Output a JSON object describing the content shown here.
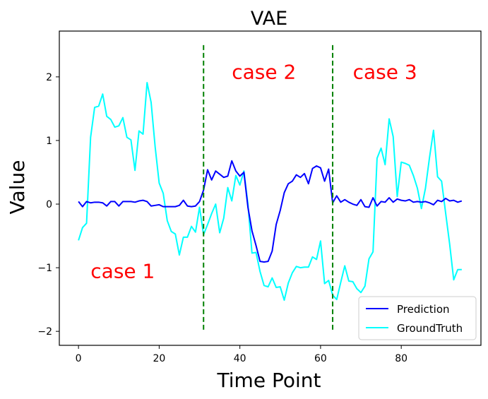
{
  "chart_data": {
    "type": "line",
    "title": "VAE",
    "xlabel": "Time Point",
    "ylabel": "Value",
    "xlim": [
      -4.75,
      99.75
    ],
    "ylim": [
      -2.22,
      2.72
    ],
    "xticks": [
      0,
      20,
      40,
      60,
      80
    ],
    "yticks": [
      -2,
      -1,
      0,
      1,
      2
    ],
    "xtick_labels": [
      "0",
      "20",
      "40",
      "60",
      "80"
    ],
    "ytick_labels": [
      "−2",
      "−1",
      "0",
      "1",
      "2"
    ],
    "grid": false,
    "legend_position": "lower-right",
    "series": [
      {
        "name": "Prediction",
        "color": "#0000ff",
        "x": [
          0,
          1,
          2,
          3,
          4,
          5,
          6,
          7,
          8,
          9,
          10,
          11,
          12,
          13,
          14,
          15,
          16,
          17,
          18,
          19,
          20,
          21,
          22,
          23,
          24,
          25,
          26,
          27,
          28,
          29,
          30,
          31,
          32,
          33,
          34,
          35,
          36,
          37,
          38,
          39,
          40,
          41,
          42,
          43,
          44,
          45,
          46,
          47,
          48,
          49,
          50,
          51,
          52,
          53,
          54,
          55,
          56,
          57,
          58,
          59,
          60,
          61,
          62,
          63,
          64,
          65,
          66,
          67,
          68,
          69,
          70,
          71,
          72,
          73,
          74,
          75,
          76,
          77,
          78,
          79,
          80,
          81,
          82,
          83,
          84,
          85,
          86,
          87,
          88,
          89,
          90,
          91,
          92,
          93,
          94,
          95
        ],
        "y": [
          0.04,
          -0.04,
          0.04,
          0.02,
          0.03,
          0.03,
          0.02,
          -0.03,
          0.04,
          0.04,
          -0.03,
          0.04,
          0.04,
          0.04,
          0.03,
          0.05,
          0.06,
          0.04,
          -0.03,
          -0.02,
          -0.01,
          -0.04,
          -0.04,
          -0.04,
          -0.04,
          -0.02,
          0.06,
          -0.03,
          -0.04,
          -0.03,
          0.04,
          0.22,
          0.54,
          0.38,
          0.52,
          0.47,
          0.42,
          0.44,
          0.68,
          0.52,
          0.44,
          0.5,
          -0.05,
          -0.42,
          -0.65,
          -0.9,
          -0.91,
          -0.9,
          -0.74,
          -0.32,
          -0.1,
          0.18,
          0.32,
          0.36,
          0.46,
          0.42,
          0.48,
          0.32,
          0.56,
          0.6,
          0.57,
          0.36,
          0.55,
          0.02,
          0.13,
          0.03,
          0.07,
          0.03,
          0.0,
          -0.02,
          0.07,
          -0.04,
          -0.05,
          0.1,
          -0.03,
          0.04,
          0.03,
          0.1,
          0.03,
          0.08,
          0.06,
          0.05,
          0.07,
          0.03,
          0.04,
          0.03,
          0.04,
          0.02,
          -0.01,
          0.06,
          0.04,
          0.09,
          0.05,
          0.06,
          0.03,
          0.05
        ]
      },
      {
        "name": "GroundTruth",
        "color": "#00ffff",
        "x": [
          0,
          1,
          2,
          3,
          4,
          5,
          6,
          7,
          8,
          9,
          10,
          11,
          12,
          13,
          14,
          15,
          16,
          17,
          18,
          19,
          20,
          21,
          22,
          23,
          24,
          25,
          26,
          27,
          28,
          29,
          30,
          31,
          32,
          33,
          34,
          35,
          36,
          37,
          38,
          39,
          40,
          41,
          42,
          43,
          44,
          45,
          46,
          47,
          48,
          49,
          50,
          51,
          52,
          53,
          54,
          55,
          56,
          57,
          58,
          59,
          60,
          61,
          62,
          63,
          64,
          65,
          66,
          67,
          68,
          69,
          70,
          71,
          72,
          73,
          74,
          75,
          76,
          77,
          78,
          79,
          80,
          81,
          82,
          83,
          84,
          85,
          86,
          87,
          88,
          89,
          90,
          91,
          92,
          93,
          94,
          95
        ],
        "y": [
          -0.57,
          -0.37,
          -0.3,
          1.05,
          1.52,
          1.54,
          1.73,
          1.38,
          1.33,
          1.21,
          1.23,
          1.36,
          1.05,
          1.01,
          0.53,
          1.15,
          1.1,
          1.91,
          1.6,
          0.9,
          0.33,
          0.17,
          -0.26,
          -0.43,
          -0.47,
          -0.8,
          -0.52,
          -0.52,
          -0.35,
          -0.44,
          -0.05,
          -0.48,
          -0.32,
          -0.15,
          0.0,
          -0.45,
          -0.22,
          0.26,
          0.05,
          0.45,
          0.3,
          0.52,
          0.0,
          -0.77,
          -0.76,
          -1.06,
          -1.28,
          -1.3,
          -1.16,
          -1.31,
          -1.3,
          -1.51,
          -1.24,
          -1.08,
          -0.98,
          -1.0,
          -0.99,
          -0.99,
          -0.83,
          -0.87,
          -0.58,
          -1.25,
          -1.2,
          -1.43,
          -1.5,
          -1.23,
          -0.97,
          -1.21,
          -1.22,
          -1.33,
          -1.39,
          -1.29,
          -0.86,
          -0.75,
          0.72,
          0.88,
          0.62,
          1.34,
          1.06,
          0.12,
          0.66,
          0.64,
          0.61,
          0.45,
          0.25,
          -0.07,
          0.25,
          0.73,
          1.16,
          0.43,
          0.36,
          -0.14,
          -0.63,
          -1.19,
          -1.03,
          -1.03
        ]
      }
    ],
    "vlines": [
      {
        "x": 31,
        "ymin": -2,
        "ymax": 2.5,
        "color": "#008000",
        "style": "dashed"
      },
      {
        "x": 63,
        "ymin": -2,
        "ymax": 2.5,
        "color": "#008000",
        "style": "dashed"
      }
    ],
    "annotations": [
      {
        "text": "case 1",
        "x": 3,
        "y": -1.05,
        "color": "#ff0000"
      },
      {
        "text": "case 2",
        "x": 38,
        "y": 2.08,
        "color": "#ff0000"
      },
      {
        "text": "case 3",
        "x": 68,
        "y": 2.08,
        "color": "#ff0000"
      }
    ]
  }
}
